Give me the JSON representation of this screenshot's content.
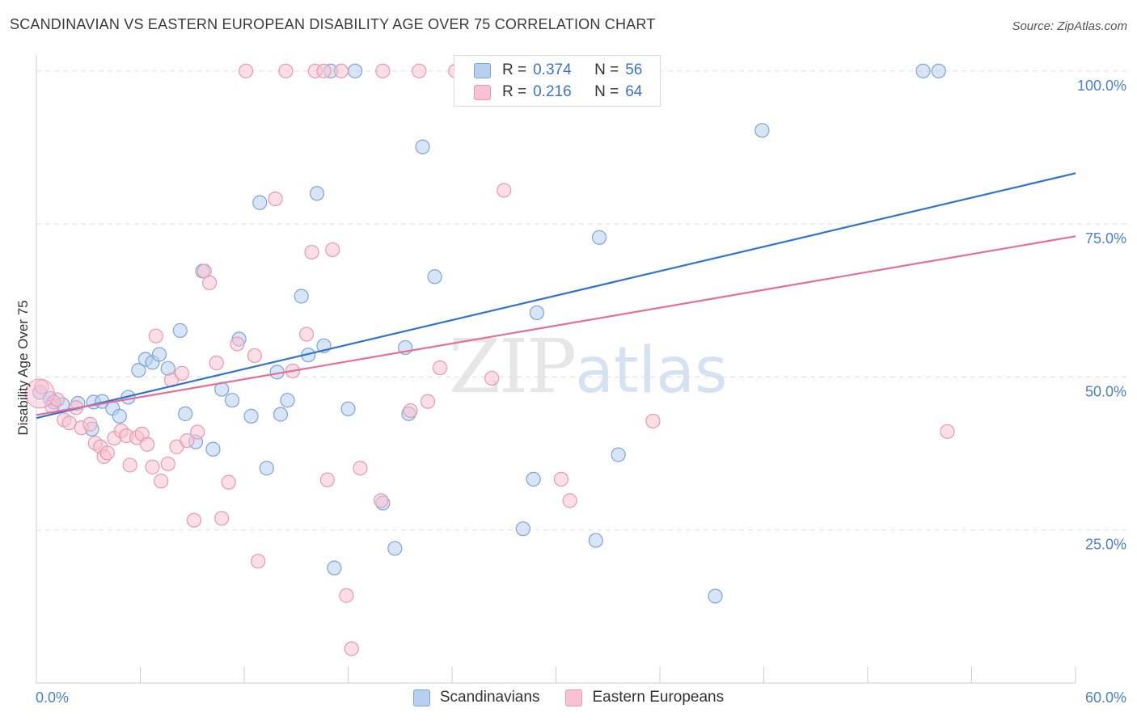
{
  "title": "SCANDINAVIAN VS EASTERN EUROPEAN DISABILITY AGE OVER 75 CORRELATION CHART",
  "source": "Source: ZipAtlas.com",
  "watermark": {
    "zip": "ZIP",
    "atlas": "atlas"
  },
  "legend": {
    "r_label": "R =",
    "n_label": "N =",
    "rows": [
      {
        "r": "0.374",
        "n": "56"
      },
      {
        "r": "0.216",
        "n": "64"
      }
    ]
  },
  "colors": {
    "blue_fill": "#b8d0ef",
    "blue_stroke": "#7aa4db",
    "blue_line": "#3173cc",
    "pink_fill": "#f7c2d2",
    "pink_stroke": "#e898b2",
    "pink_line": "#e36e98",
    "tick_label": "#4a7fd0",
    "grid": "#dddddd"
  },
  "chart_data": {
    "type": "scatter",
    "title": "SCANDINAVIAN VS EASTERN EUROPEAN DISABILITY AGE OVER 75 CORRELATION CHART",
    "xlabel": "",
    "ylabel": "Disability Age Over 75",
    "xlim": [
      0,
      60
    ],
    "ylim": [
      0,
      105
    ],
    "x_tick_labels": [
      "0.0%",
      "60.0%"
    ],
    "y_ticks": [
      25,
      50,
      75,
      100
    ],
    "y_tick_labels": [
      "25.0%",
      "50.0%",
      "75.0%",
      "100.0%"
    ],
    "grid": true,
    "legend_placement": "bottom-center",
    "series": [
      {
        "name": "Scandinavians",
        "r": 0.374,
        "n": 56,
        "trend": {
          "x": [
            0,
            60
          ],
          "y": [
            43.3,
            83.3
          ]
        },
        "points": [
          [
            0.2,
            47.5
          ],
          [
            0.8,
            46.5
          ],
          [
            1.5,
            45.5
          ],
          [
            2.4,
            45.7
          ],
          [
            3.2,
            41.5
          ],
          [
            3.3,
            45.9
          ],
          [
            3.8,
            46.0
          ],
          [
            4.4,
            44.9
          ],
          [
            4.8,
            43.6
          ],
          [
            5.3,
            46.7
          ],
          [
            5.9,
            51.1
          ],
          [
            6.3,
            52.9
          ],
          [
            6.7,
            52.4
          ],
          [
            7.1,
            53.7
          ],
          [
            7.6,
            51.4
          ],
          [
            8.3,
            57.6
          ],
          [
            8.6,
            44.0
          ],
          [
            9.2,
            39.4
          ],
          [
            9.6,
            67.3
          ],
          [
            10.2,
            38.2
          ],
          [
            10.7,
            48.0
          ],
          [
            11.3,
            46.2
          ],
          [
            11.7,
            56.2
          ],
          [
            12.4,
            43.6
          ],
          [
            12.9,
            78.5
          ],
          [
            13.3,
            35.1
          ],
          [
            13.9,
            50.8
          ],
          [
            14.1,
            43.9
          ],
          [
            14.5,
            46.2
          ],
          [
            15.3,
            63.2
          ],
          [
            15.7,
            53.6
          ],
          [
            16.2,
            80.0
          ],
          [
            16.6,
            55.1
          ],
          [
            17.0,
            100.0
          ],
          [
            17.2,
            18.8
          ],
          [
            18.0,
            44.8
          ],
          [
            18.4,
            100.0
          ],
          [
            20.0,
            29.4
          ],
          [
            20.7,
            22.0
          ],
          [
            21.3,
            54.8
          ],
          [
            21.5,
            44.0
          ],
          [
            22.3,
            87.6
          ],
          [
            23.0,
            66.4
          ],
          [
            25.7,
            100.0
          ],
          [
            28.1,
            25.2
          ],
          [
            28.7,
            33.3
          ],
          [
            28.9,
            60.5
          ],
          [
            32.3,
            23.3
          ],
          [
            32.5,
            72.8
          ],
          [
            33.6,
            37.3
          ],
          [
            33.7,
            100.0
          ],
          [
            39.2,
            14.2
          ],
          [
            41.9,
            90.3
          ],
          [
            51.2,
            100.0
          ],
          [
            52.1,
            100.0
          ],
          [
            1.0,
            45.9
          ]
        ]
      },
      {
        "name": "Eastern Europeans",
        "r": 0.216,
        "n": 64,
        "trend": {
          "x": [
            0,
            60
          ],
          "y": [
            43.8,
            73.0
          ]
        },
        "points": [
          [
            0.3,
            48.4
          ],
          [
            0.9,
            45.2
          ],
          [
            1.2,
            46.3
          ],
          [
            1.6,
            43.0
          ],
          [
            1.9,
            42.5
          ],
          [
            2.3,
            45.0
          ],
          [
            2.6,
            41.7
          ],
          [
            3.1,
            42.3
          ],
          [
            3.4,
            39.2
          ],
          [
            3.7,
            38.6
          ],
          [
            3.9,
            37.0
          ],
          [
            4.1,
            37.6
          ],
          [
            4.5,
            40.0
          ],
          [
            4.9,
            41.2
          ],
          [
            5.2,
            40.4
          ],
          [
            5.4,
            35.6
          ],
          [
            5.8,
            40.1
          ],
          [
            6.1,
            40.7
          ],
          [
            6.4,
            39.0
          ],
          [
            6.7,
            35.3
          ],
          [
            6.9,
            56.7
          ],
          [
            7.2,
            33.0
          ],
          [
            7.6,
            35.8
          ],
          [
            7.8,
            49.5
          ],
          [
            8.1,
            38.6
          ],
          [
            8.4,
            50.6
          ],
          [
            8.7,
            39.6
          ],
          [
            9.1,
            26.6
          ],
          [
            9.3,
            41.0
          ],
          [
            9.7,
            67.3
          ],
          [
            10.0,
            65.4
          ],
          [
            10.4,
            52.3
          ],
          [
            10.7,
            26.9
          ],
          [
            11.1,
            32.8
          ],
          [
            11.6,
            55.4
          ],
          [
            12.1,
            100.0
          ],
          [
            12.6,
            53.5
          ],
          [
            12.8,
            19.9
          ],
          [
            13.8,
            79.1
          ],
          [
            14.4,
            100.0
          ],
          [
            14.8,
            51.0
          ],
          [
            15.6,
            57.0
          ],
          [
            15.9,
            70.4
          ],
          [
            16.1,
            100.0
          ],
          [
            16.6,
            100.0
          ],
          [
            16.8,
            33.2
          ],
          [
            17.1,
            70.8
          ],
          [
            17.6,
            100.0
          ],
          [
            17.9,
            14.3
          ],
          [
            18.2,
            5.6
          ],
          [
            18.7,
            35.1
          ],
          [
            19.9,
            29.8
          ],
          [
            21.6,
            44.5
          ],
          [
            22.1,
            100.0
          ],
          [
            23.3,
            51.5
          ],
          [
            26.3,
            49.8
          ],
          [
            27.0,
            80.5
          ],
          [
            30.3,
            33.3
          ],
          [
            30.8,
            29.8
          ],
          [
            35.6,
            42.8
          ],
          [
            52.6,
            41.1
          ],
          [
            22.6,
            46.0
          ],
          [
            24.2,
            100.0
          ],
          [
            20.0,
            100.0
          ]
        ]
      }
    ]
  }
}
